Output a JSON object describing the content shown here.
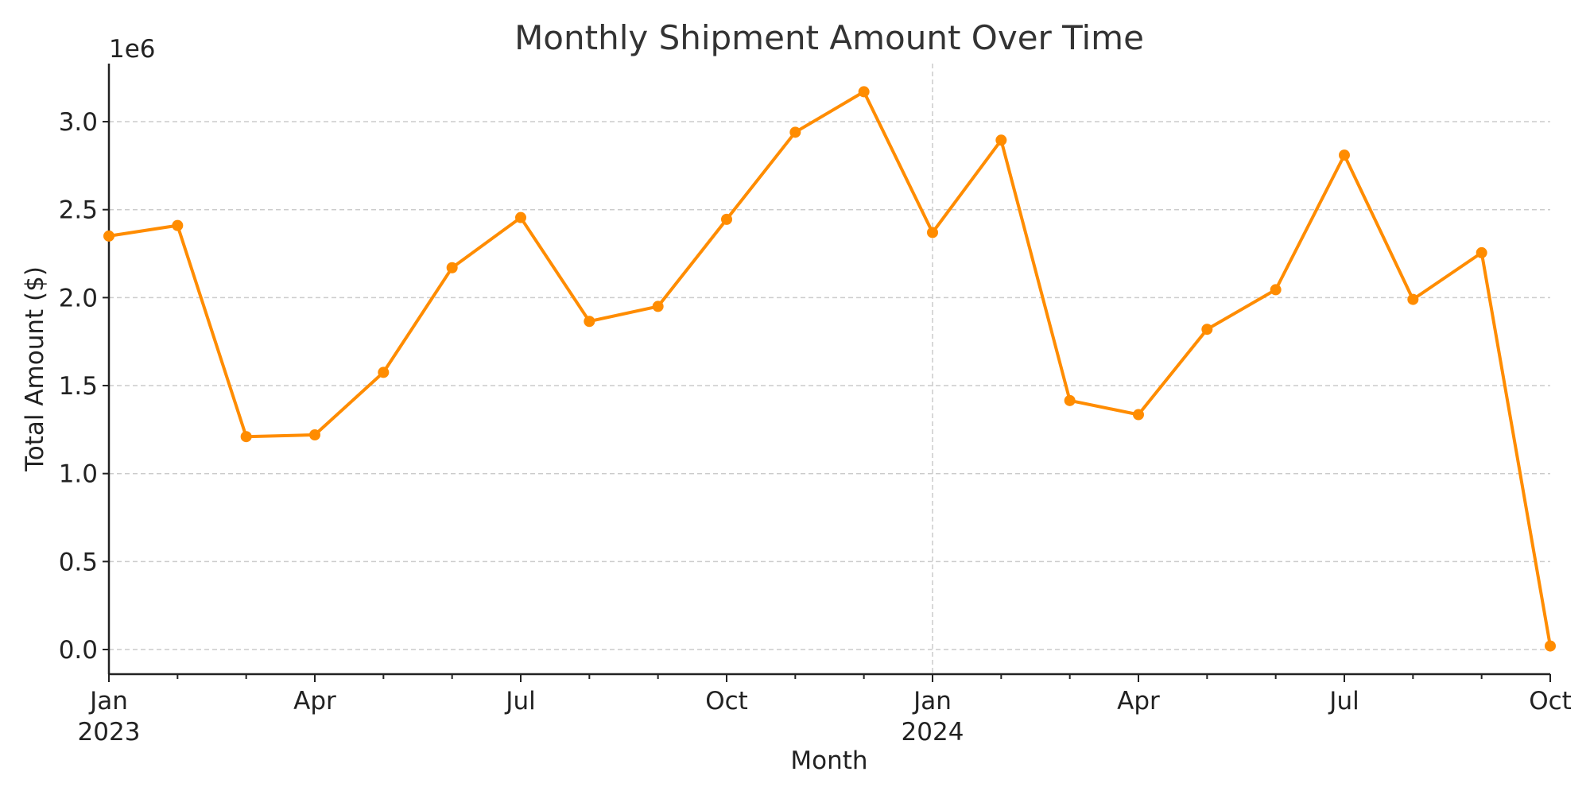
{
  "chart_data": {
    "type": "line",
    "title": "Monthly Shipment Amount Over Time",
    "xlabel": "Month",
    "ylabel": "Total Amount ($)",
    "y_offset_label": "1e6",
    "x": [
      "2023-01",
      "2023-02",
      "2023-03",
      "2023-04",
      "2023-05",
      "2023-06",
      "2023-07",
      "2023-08",
      "2023-09",
      "2023-10",
      "2023-11",
      "2023-12",
      "2024-01",
      "2024-02",
      "2024-03",
      "2024-04",
      "2024-05",
      "2024-06",
      "2024-07",
      "2024-08",
      "2024-09",
      "2024-10"
    ],
    "series": [
      {
        "values": [
          2350000,
          2410000,
          1210000,
          1220000,
          1575000,
          2170000,
          2455000,
          1865000,
          1950000,
          2445000,
          2940000,
          3170000,
          2370000,
          2895000,
          1415000,
          1335000,
          1820000,
          2045000,
          2810000,
          1990000,
          2255000,
          20000
        ],
        "color": "#ff8c00"
      }
    ],
    "ylim": [
      -140000,
      3330000
    ],
    "xlim": [
      "2023-01",
      "2024-10"
    ],
    "y_ticks": [
      {
        "value": 0,
        "label": "0.0"
      },
      {
        "value": 500000,
        "label": "0.5"
      },
      {
        "value": 1000000,
        "label": "1.0"
      },
      {
        "value": 1500000,
        "label": "1.5"
      },
      {
        "value": 2000000,
        "label": "2.0"
      },
      {
        "value": 2500000,
        "label": "2.5"
      },
      {
        "value": 3000000,
        "label": "3.0"
      }
    ],
    "x_major_ticks": [
      {
        "month": "2023-01",
        "label": "Jan",
        "sublabel": "2023"
      },
      {
        "month": "2023-04",
        "label": "Apr",
        "sublabel": ""
      },
      {
        "month": "2023-07",
        "label": "Jul",
        "sublabel": ""
      },
      {
        "month": "2023-10",
        "label": "Oct",
        "sublabel": ""
      },
      {
        "month": "2024-01",
        "label": "Jan",
        "sublabel": "2024"
      },
      {
        "month": "2024-04",
        "label": "Apr",
        "sublabel": ""
      },
      {
        "month": "2024-07",
        "label": "Jul",
        "sublabel": ""
      },
      {
        "month": "2024-10",
        "label": "Oct",
        "sublabel": ""
      }
    ],
    "grid": "horizontal dashed; vertical dashed at year boundary",
    "legend": "none"
  }
}
